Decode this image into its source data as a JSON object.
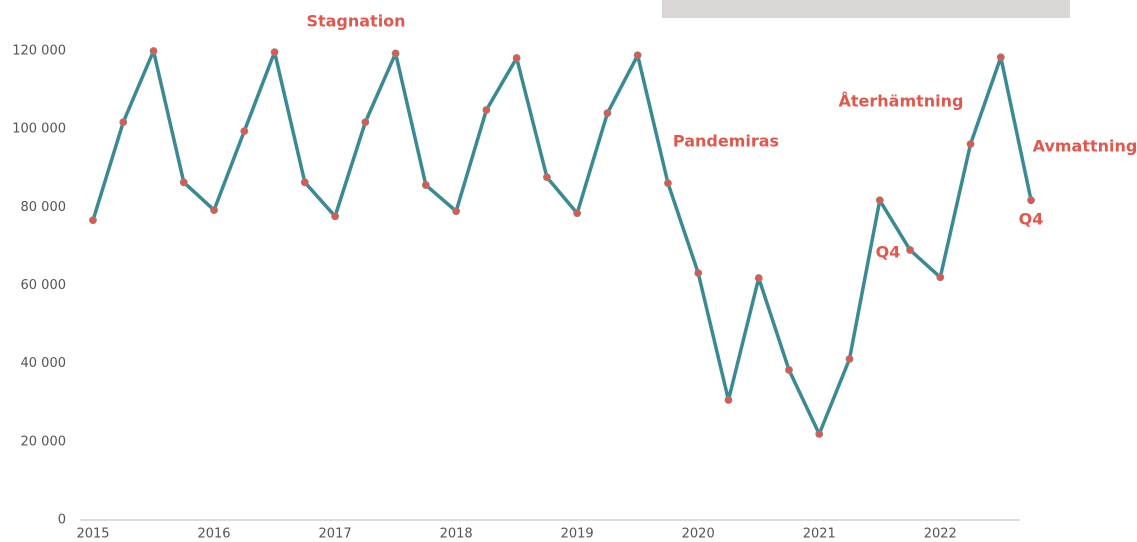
{
  "chart_data": {
    "type": "line",
    "categories": [
      "2015",
      null,
      null,
      null,
      "2016",
      null,
      null,
      null,
      "2017",
      null,
      null,
      null,
      "2018",
      null,
      null,
      null,
      "2019",
      null,
      null,
      null,
      "2020",
      null,
      null,
      null,
      "2021",
      null,
      null,
      null,
      "2022",
      null,
      null,
      null
    ],
    "series": [
      {
        "color": "#3b8a93",
        "marker_color": "#e0574d",
        "values": [
          76700,
          101800,
          120000,
          86400,
          79300,
          99500,
          119700,
          86400,
          77700,
          101800,
          119400,
          85700,
          79000,
          104900,
          118200,
          87700,
          78500,
          104100,
          118900,
          86200,
          63200,
          30700,
          61900,
          38400,
          22000,
          41200,
          81800,
          69100,
          62100,
          96200,
          118400,
          81800
        ]
      }
    ],
    "ylim": [
      0,
      120000
    ],
    "yticks": [
      0,
      {
        "value": 20000,
        "label": "20 000"
      },
      {
        "value": 40000,
        "label": "40 000"
      },
      {
        "value": 60000,
        "label": "60 000"
      },
      {
        "value": 80000,
        "label": "80 000"
      },
      {
        "value": 100000,
        "label": "100 000"
      },
      {
        "value": 120000,
        "label": "120 000"
      }
    ],
    "grid": false,
    "annotations": [
      "Stagnation",
      "Pandemiras",
      "Återhämtning",
      "Q4",
      "Avmattning",
      "Q4"
    ]
  }
}
